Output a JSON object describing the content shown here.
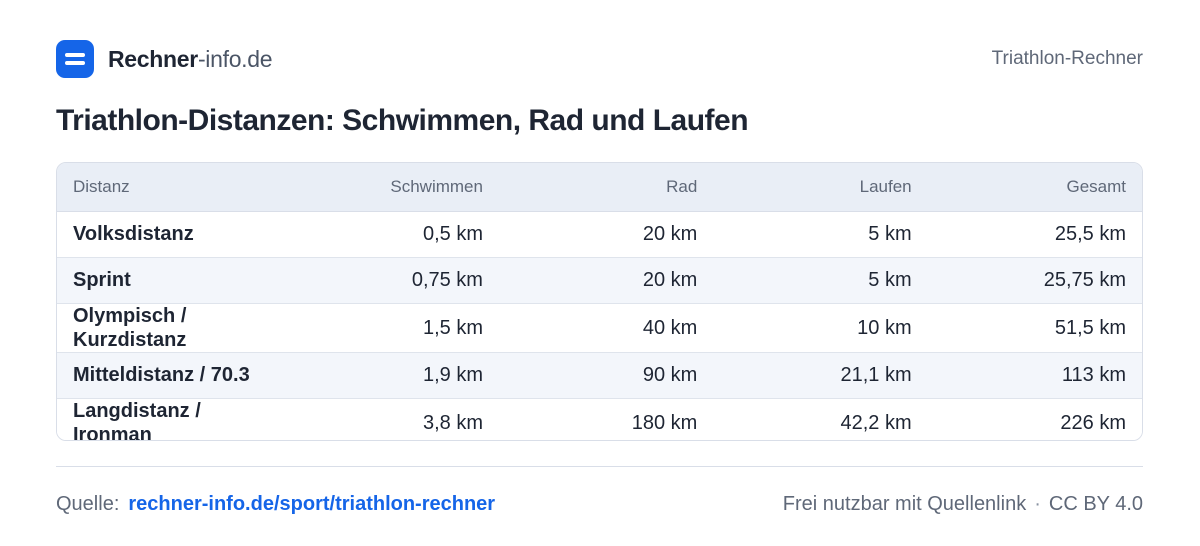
{
  "header": {
    "brand_bold": "Rechner",
    "brand_light": "-info.de",
    "right_label": "Triathlon-Rechner",
    "logo_icon": "menu-lines-icon",
    "accent": "#1565e8"
  },
  "title": "Triathlon-Distanzen: Schwimmen, Rad und Laufen",
  "table": {
    "columns": [
      "Distanz",
      "Schwimmen",
      "Rad",
      "Laufen",
      "Gesamt"
    ],
    "rows": [
      [
        "Volksdistanz",
        "0,5 km",
        "20 km",
        "5 km",
        "25,5 km"
      ],
      [
        "Sprint",
        "0,75 km",
        "20 km",
        "5 km",
        "25,75 km"
      ],
      [
        "Olympisch / Kurzdistanz",
        "1,5 km",
        "40 km",
        "10 km",
        "51,5 km"
      ],
      [
        "Mitteldistanz / 70.3",
        "1,9 km",
        "90 km",
        "21,1 km",
        "113 km"
      ],
      [
        "Langdistanz / Ironman",
        "3,8 km",
        "180 km",
        "42,2 km",
        "226 km"
      ]
    ]
  },
  "footer": {
    "source_label": "Quelle:",
    "source_link": "rechner-info.de/sport/triathlon-rechner",
    "license_text": "Frei nutzbar mit Quellenlink",
    "separator": "·",
    "license": "CC BY 4.0"
  }
}
